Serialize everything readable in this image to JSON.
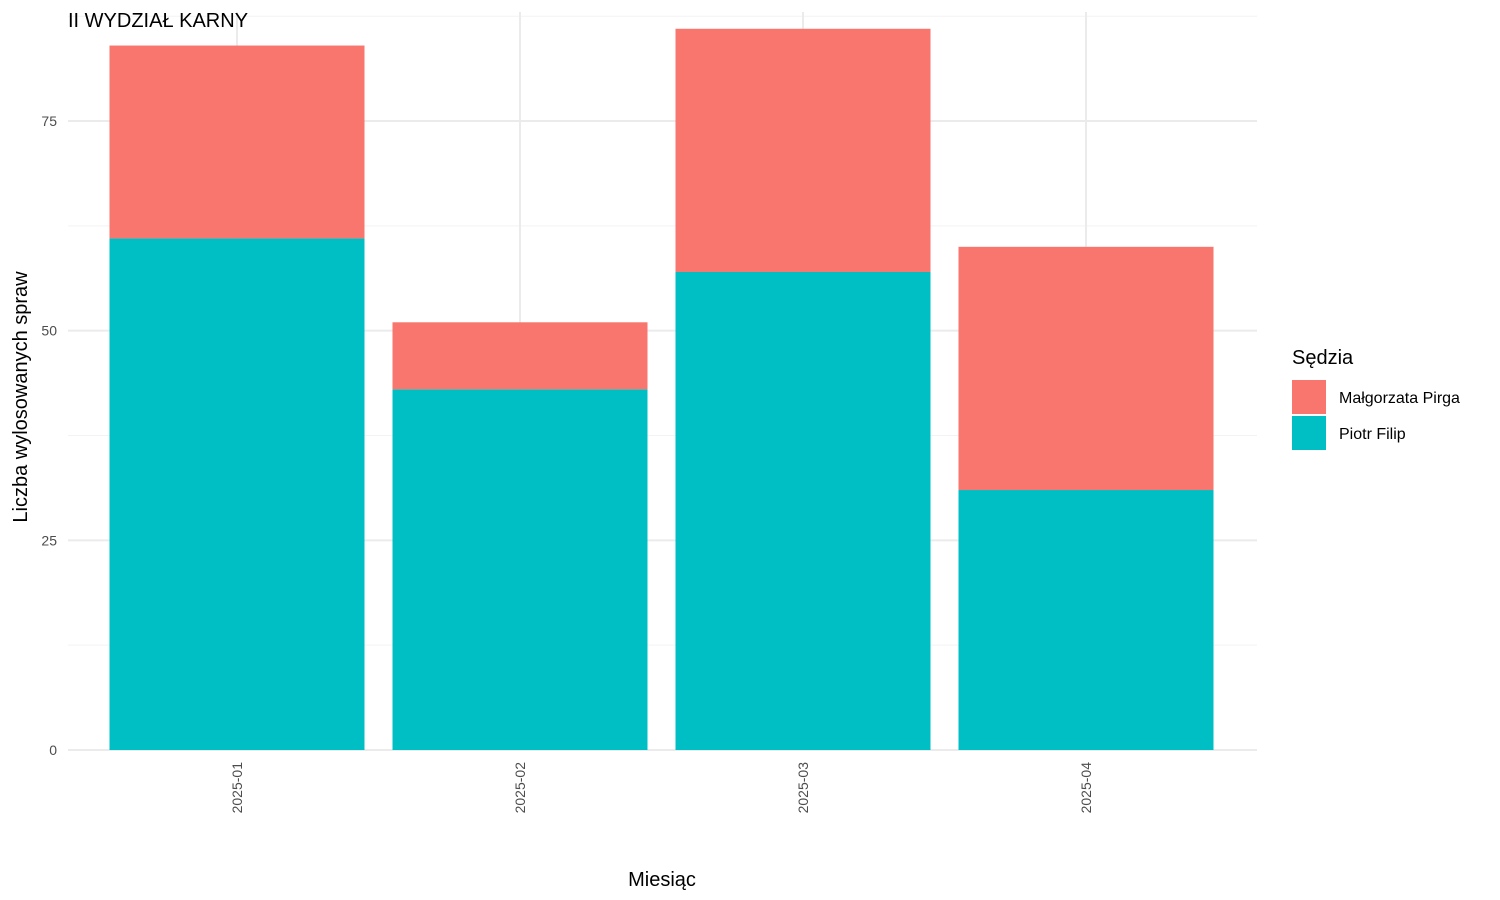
{
  "chart_data": {
    "type": "bar",
    "stacked": true,
    "title": "II WYDZIAŁ KARNY",
    "xlabel": "Miesiąc",
    "ylabel": "Liczba wylosowanych spraw",
    "categories": [
      "2025-01",
      "2025-02",
      "2025-03",
      "2025-04"
    ],
    "yticks": [
      0,
      25,
      50,
      75
    ],
    "ylim": [
      0,
      88
    ],
    "grid": true,
    "legend": {
      "title": "Sędzia",
      "position": "right"
    },
    "series": [
      {
        "name": "Piotr Filip",
        "color": "#00BFC4",
        "values": [
          61,
          43,
          57,
          31
        ]
      },
      {
        "name": "Małgorzata Pirga",
        "color": "#F8766D",
        "values": [
          23,
          8,
          29,
          29
        ]
      }
    ]
  }
}
